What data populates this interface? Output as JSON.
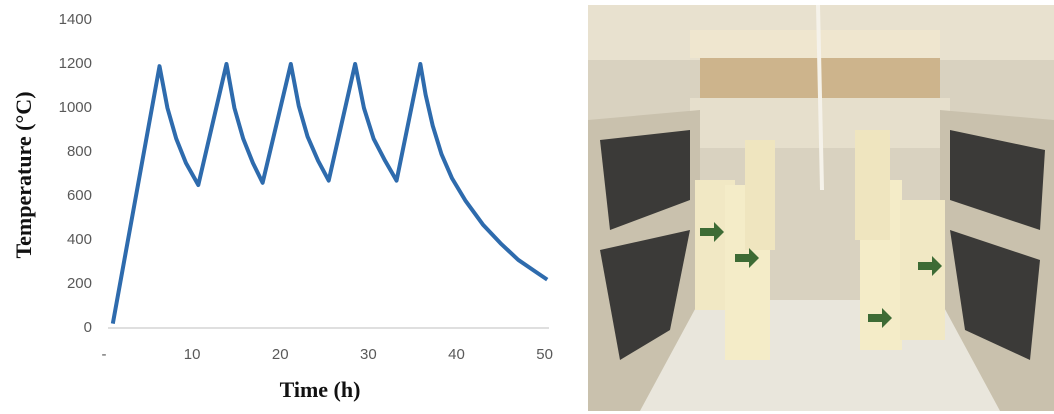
{
  "chart_data": {
    "type": "line",
    "xlabel": "Time (h)",
    "ylabel": "Temperature (°C)",
    "x": [
      1,
      6.3,
      7.2,
      8.2,
      9.3,
      10.7,
      13.9,
      14.8,
      15.8,
      16.9,
      18.0,
      21.2,
      22.1,
      23.1,
      24.3,
      25.5,
      28.5,
      29.5,
      30.6,
      31.9,
      33.2,
      35.9,
      36.5,
      37.3,
      38.3,
      39.5,
      41,
      43,
      45,
      47,
      49,
      50.3
    ],
    "series": [
      {
        "color": "#2e6bad",
        "values": [
          20,
          1190,
          1000,
          860,
          750,
          650,
          1200,
          1000,
          860,
          750,
          660,
          1200,
          1010,
          870,
          760,
          670,
          1200,
          1000,
          860,
          760,
          670,
          1200,
          1060,
          920,
          790,
          680,
          580,
          470,
          385,
          310,
          255,
          220
        ]
      }
    ],
    "xlim": [
      0,
      50.5
    ],
    "ylim": [
      0,
      1400
    ],
    "xticks": [
      {
        "value": 0,
        "label": "-"
      },
      10,
      20,
      30,
      40,
      50
    ],
    "yticks": [
      0,
      200,
      400,
      600,
      800,
      1000,
      1200,
      1400
    ]
  }
}
